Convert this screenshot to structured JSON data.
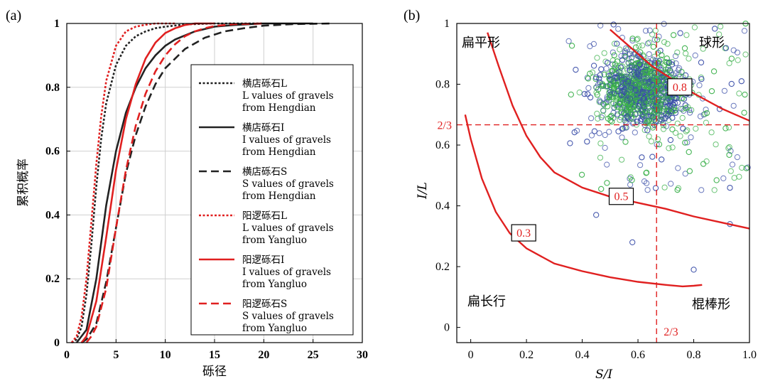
{
  "chart_data": [
    {
      "panel_label": "(a)",
      "type": "line",
      "xlabel": "砾径",
      "ylabel": "累积概率",
      "xlim": [
        0,
        30
      ],
      "ylim": [
        0,
        1
      ],
      "xticks": [
        "0",
        "5",
        "10",
        "15",
        "20",
        "25",
        "30"
      ],
      "yticks": [
        "0",
        "0.2",
        "0.4",
        "0.6",
        "0.8",
        "1"
      ],
      "grid": true,
      "legend_position": "right",
      "series": [
        {
          "name": "横店砾石L",
          "name_en": [
            "L values of gravels",
            "from Hengdian"
          ],
          "color": "#222222",
          "style": "dotted",
          "x": [
            0.5,
            1.0,
            1.5,
            2.0,
            2.5,
            3.0,
            3.5,
            4.0,
            5.0,
            6.0,
            7.0,
            8.0,
            9.0,
            10.0,
            12.0,
            15.0,
            20.0
          ],
          "y": [
            0.0,
            0.01,
            0.05,
            0.15,
            0.31,
            0.49,
            0.64,
            0.75,
            0.87,
            0.93,
            0.96,
            0.975,
            0.985,
            0.99,
            0.997,
            1.0,
            1.0
          ]
        },
        {
          "name": "横店砾石I",
          "name_en": [
            "I values of gravels",
            "from Hengdian"
          ],
          "color": "#222222",
          "style": "solid",
          "x": [
            1.0,
            1.5,
            2.0,
            3.0,
            4.0,
            5.0,
            6.0,
            7.0,
            8.0,
            9.0,
            10.0,
            11.0,
            13.0,
            15.0,
            17.0,
            20.0,
            25.0
          ],
          "y": [
            0.0,
            0.02,
            0.04,
            0.2,
            0.43,
            0.6,
            0.72,
            0.8,
            0.86,
            0.9,
            0.93,
            0.95,
            0.975,
            0.99,
            0.995,
            1.0,
            1.0
          ]
        },
        {
          "name": "横店砾石S",
          "name_en": [
            "S values of gravels",
            "from Hengdian"
          ],
          "color": "#222222",
          "style": "dashed",
          "x": [
            1.5,
            2.0,
            3.0,
            4.0,
            5.0,
            6.0,
            7.0,
            8.0,
            9.0,
            10.0,
            12.0,
            14.0,
            16.0,
            18.0,
            20.0,
            23.0,
            27.0
          ],
          "y": [
            0.0,
            0.01,
            0.06,
            0.19,
            0.36,
            0.53,
            0.65,
            0.74,
            0.81,
            0.86,
            0.92,
            0.955,
            0.975,
            0.985,
            0.993,
            0.998,
            1.0
          ]
        },
        {
          "name": "阳逻砾石L",
          "name_en": [
            "L values of gravels",
            "from Yangluo"
          ],
          "color": "#e02020",
          "style": "dotted",
          "x": [
            0.5,
            1.0,
            1.5,
            2.0,
            2.5,
            3.0,
            3.5,
            4.0,
            5.0,
            6.0,
            7.0,
            8.0,
            9.0,
            11.0
          ],
          "y": [
            0.0,
            0.02,
            0.08,
            0.2,
            0.38,
            0.56,
            0.71,
            0.82,
            0.93,
            0.975,
            0.99,
            0.996,
            1.0,
            1.0
          ]
        },
        {
          "name": "阳逻砾石I",
          "name_en": [
            "I values of gravels",
            "from Yangluo"
          ],
          "color": "#e02020",
          "style": "solid",
          "x": [
            1.5,
            2.0,
            3.0,
            4.0,
            5.0,
            6.0,
            7.0,
            8.0,
            9.0,
            10.0,
            11.0,
            12.0,
            13.0,
            15.0
          ],
          "y": [
            0.0,
            0.02,
            0.13,
            0.33,
            0.54,
            0.7,
            0.81,
            0.89,
            0.94,
            0.97,
            0.985,
            0.995,
            1.0,
            1.0
          ]
        },
        {
          "name": "阳逻砾石S",
          "name_en": [
            "S values of gravels",
            "from Yangluo"
          ],
          "color": "#e02020",
          "style": "dashed",
          "x": [
            2.0,
            2.5,
            3.0,
            4.0,
            5.0,
            6.0,
            7.0,
            8.0,
            9.0,
            10.0,
            11.0,
            12.0,
            13.0,
            14.0,
            15.0,
            17.0,
            20.0
          ],
          "y": [
            0.0,
            0.02,
            0.05,
            0.17,
            0.36,
            0.54,
            0.68,
            0.78,
            0.85,
            0.9,
            0.935,
            0.96,
            0.975,
            0.985,
            0.992,
            0.998,
            1.0
          ]
        }
      ]
    },
    {
      "panel_label": "(b)",
      "type": "scatter",
      "xlabel": "S/I",
      "ylabel": "I/L",
      "xlim": [
        -0.05,
        1.0
      ],
      "ylim": [
        -0.05,
        1.0
      ],
      "xticks": [
        "0",
        "0.2",
        "0.4",
        "0.6",
        "0.8",
        "1.0"
      ],
      "yticks": [
        "0",
        "0.2",
        "0.4",
        "0.6",
        "0.8",
        "1"
      ],
      "regions": [
        "扁平形",
        "球形",
        "扁长行",
        "棍棒形"
      ],
      "threshold_labels": [
        "2/3",
        "2/3"
      ],
      "threshold": 0.6667,
      "scatter_colors": {
        "a": "#3a4ea8",
        "b": "#3ab04a"
      },
      "contours": [
        {
          "label": "0.3",
          "x": [
            -0.02,
            0.0,
            0.04,
            0.09,
            0.14,
            0.2,
            0.3,
            0.4,
            0.5,
            0.6,
            0.7,
            0.76,
            0.8,
            0.83
          ],
          "y": [
            0.7,
            0.62,
            0.49,
            0.38,
            0.31,
            0.26,
            0.21,
            0.185,
            0.165,
            0.15,
            0.14,
            0.135,
            0.137,
            0.14
          ]
        },
        {
          "label": "0.5",
          "x": [
            0.06,
            0.1,
            0.15,
            0.2,
            0.25,
            0.3,
            0.4,
            0.5,
            0.6,
            0.7,
            0.8,
            0.9,
            1.0
          ],
          "y": [
            0.97,
            0.86,
            0.73,
            0.63,
            0.56,
            0.51,
            0.46,
            0.43,
            0.41,
            0.39,
            0.365,
            0.345,
            0.325
          ]
        },
        {
          "label": "0.8",
          "x": [
            0.5,
            0.55,
            0.6,
            0.65,
            0.7,
            0.75,
            0.8,
            0.85,
            0.9,
            0.95,
            1.0
          ],
          "y": [
            0.98,
            0.94,
            0.9,
            0.86,
            0.83,
            0.8,
            0.77,
            0.745,
            0.72,
            0.7,
            0.68
          ]
        }
      ]
    }
  ]
}
